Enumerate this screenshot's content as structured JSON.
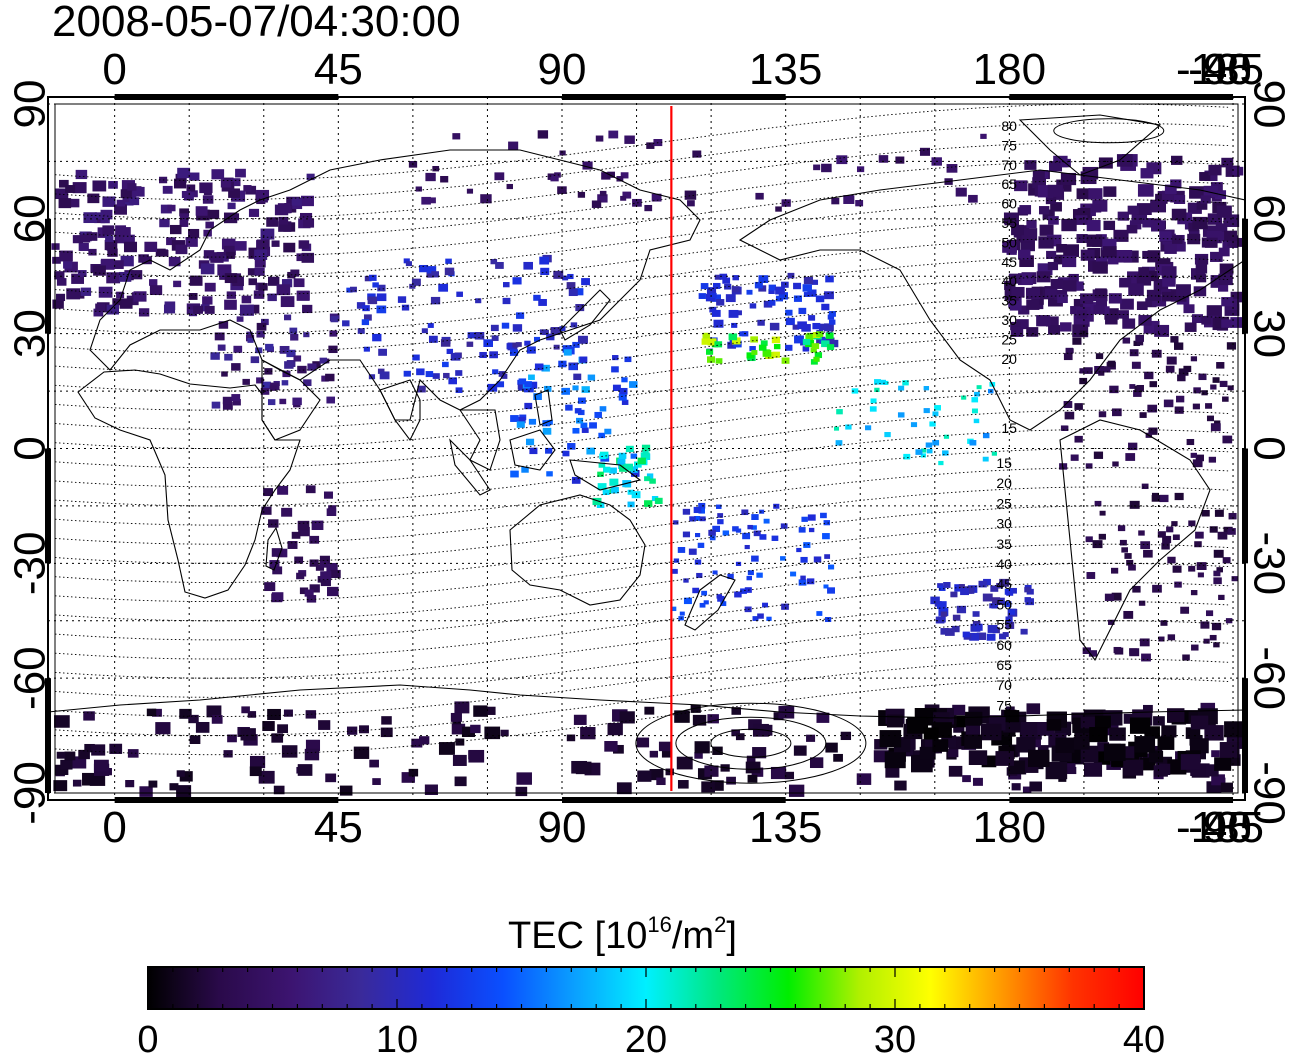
{
  "title": "2008-05-07/04:30:00",
  "map": {
    "lon_ticks_top": [
      "0",
      "45",
      "90",
      "135",
      "180",
      "-135",
      "-90",
      "-45"
    ],
    "lon_ticks_bottom": [
      "0",
      "45",
      "90",
      "135",
      "180",
      "-135",
      "-90",
      "-45"
    ],
    "lat_ticks_left": [
      "90",
      "60",
      "30",
      "0",
      "-30",
      "-60",
      "-90"
    ],
    "lat_ticks_right": [
      "90",
      "60",
      "30",
      "0",
      "-30",
      "-60",
      "-90"
    ],
    "lon_range": [
      -12,
      226
    ],
    "lat_range": [
      -90,
      90
    ],
    "grid": "dotted, 15 degree spacing",
    "red_meridian_lon": 112,
    "contour_labels_north": [
      "80",
      "75",
      "70",
      "65",
      "60",
      "55",
      "50",
      "45",
      "40",
      "35",
      "30",
      "25",
      "20",
      "15"
    ],
    "contour_labels_south": [
      "15",
      "20",
      "25",
      "30",
      "35",
      "40",
      "45",
      "50",
      "55",
      "60",
      "65",
      "70",
      "75"
    ],
    "line_color": "#ff0000"
  },
  "colorbar": {
    "label_main": "TEC  [10",
    "label_sup1": "16",
    "label_mid": "/m",
    "label_sup2": "2",
    "label_end": "]",
    "ticks": [
      "0",
      "10",
      "20",
      "30",
      "40"
    ],
    "range": [
      0,
      40
    ],
    "colormap": [
      "#000000",
      "#2a0a4a",
      "#3c1470",
      "#3a2a9a",
      "#1e2ad8",
      "#0a50ff",
      "#0aa0ff",
      "#00f0ff",
      "#00e880",
      "#00ee00",
      "#b0f000",
      "#ffff00",
      "#ff9900",
      "#ff3300",
      "#ff0000"
    ]
  }
}
